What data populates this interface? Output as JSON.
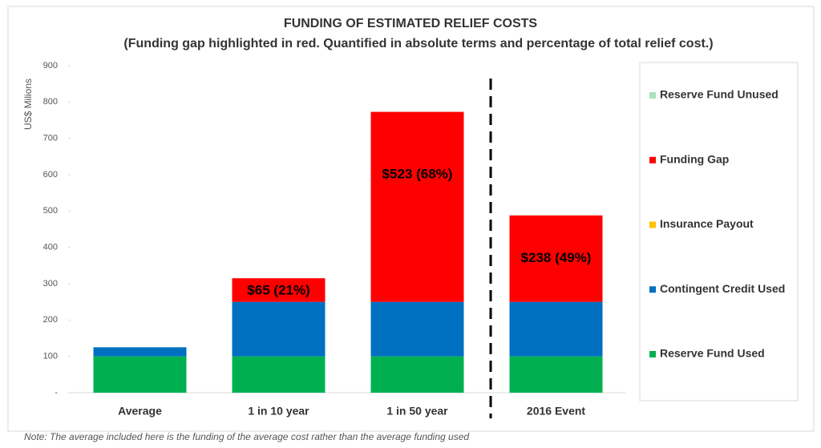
{
  "chart_data": {
    "type": "stacked_bar",
    "title": "FUNDING OF ESTIMATED RELIEF COSTS",
    "subtitle": "(Funding gap highlighted in red. Quantified in absolute terms and percentage of total relief cost.)",
    "y_label": "US$ Milions",
    "note": "Note: The average included here is the funding of the average cost rather than the average funding used",
    "categories": [
      "Average",
      "1 in 10 year",
      "1 in 50 year",
      "2016 Event"
    ],
    "series": [
      {
        "name": "Reserve Fund Used",
        "color": "#00b050",
        "values": [
          100,
          100,
          100,
          100
        ]
      },
      {
        "name": "Contingent Credit Used",
        "color": "#0070c0",
        "values": [
          25,
          150,
          150,
          150
        ]
      },
      {
        "name": "Insurance Payout",
        "color": "#ffc000",
        "values": [
          0,
          0,
          0,
          0
        ]
      },
      {
        "name": "Funding Gap",
        "color": "#ff0000",
        "values": [
          0,
          65,
          523,
          238
        ],
        "value_labels": [
          null,
          "$65 (21%)",
          "$523 (68%)",
          "$238 (49%)"
        ]
      },
      {
        "name": "Reserve Fund Unused",
        "color": "#6fcf97",
        "values": [
          0,
          0,
          0,
          0
        ]
      }
    ],
    "ylim": [
      0,
      900
    ],
    "yticks": [
      {
        "value": 0,
        "label": "-"
      },
      100,
      200,
      300,
      400,
      500,
      600,
      700,
      800,
      900
    ]
  }
}
